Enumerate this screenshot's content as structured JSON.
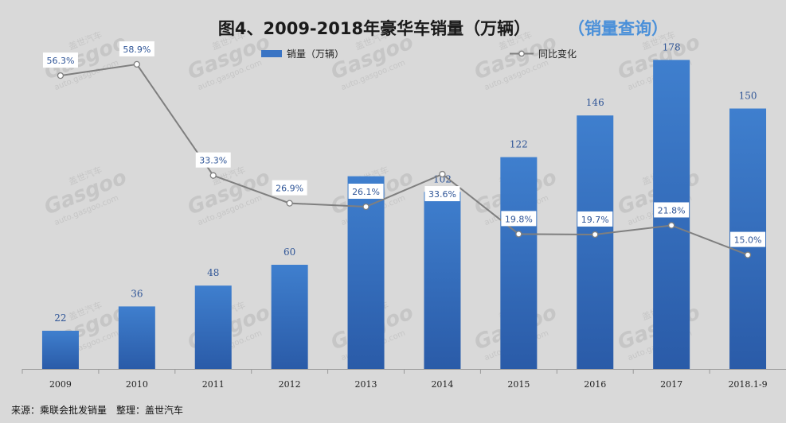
{
  "title": "图4、2009-2018年豪华车销量（万辆）",
  "title_link": "（销量查询）",
  "source": "来源：乘联会批发销量　整理：盖世汽车",
  "watermark": {
    "logo": "Gasgoo",
    "url": "auto.gasgoo.com",
    "cn": "盖世汽车"
  },
  "colors": {
    "bar_top": "#3f7fce",
    "bar_bottom": "#2a5ba8",
    "line": "#7f7f7f",
    "label": "#2f5597",
    "background": "#d9d9d9"
  },
  "chart_data": {
    "type": "bar",
    "categories": [
      "2009",
      "2010",
      "2011",
      "2012",
      "2013",
      "2014",
      "2015",
      "2016",
      "2017",
      "2018.1-9"
    ],
    "series": [
      {
        "name": "销量（万辆）",
        "type": "bar",
        "values": [
          22,
          36,
          48,
          60,
          111,
          102,
          122,
          146,
          178,
          150
        ]
      },
      {
        "name": "同比变化",
        "type": "line",
        "values": [
          56.3,
          58.9,
          33.3,
          26.9,
          26.1,
          33.6,
          19.8,
          19.7,
          21.8,
          15.0
        ],
        "value_labels": [
          "56.3%",
          "58.9%",
          "33.3%",
          "26.9%",
          "26.1%",
          "33.6%",
          "19.8%",
          "19.7%",
          "21.8%",
          "15.0%"
        ]
      }
    ],
    "bar_labels": [
      "22",
      "36",
      "48",
      "60",
      "",
      "102",
      "122",
      "146",
      "178",
      "150"
    ],
    "ylim": [
      0,
      180
    ],
    "y2lim": [
      0,
      70
    ],
    "legend_position": "top",
    "grid": false
  }
}
